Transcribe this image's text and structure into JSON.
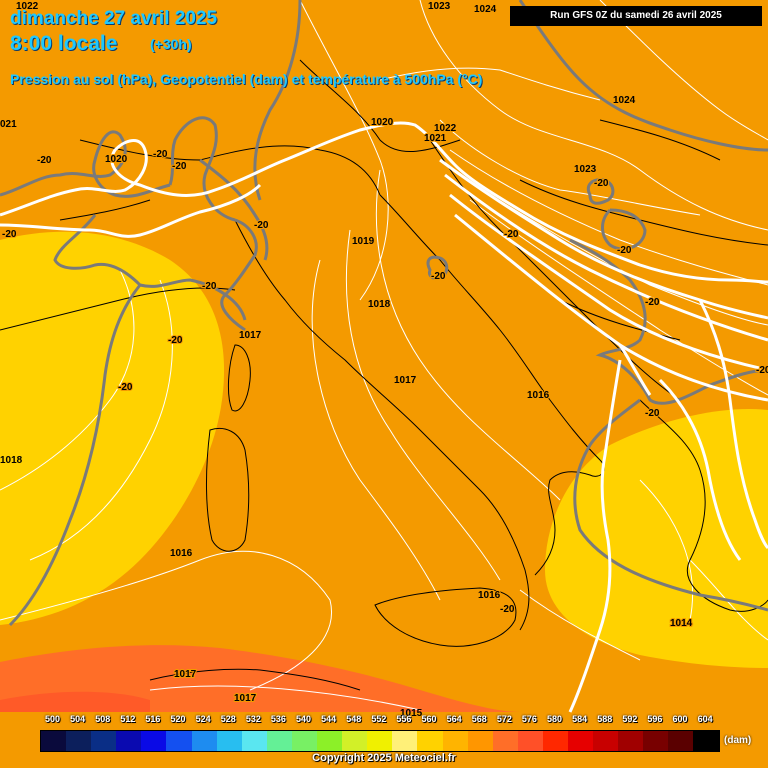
{
  "header": {
    "date_line": "dimanche 27 avril 2025",
    "time_line": "8:00 locale",
    "lead_time": "(+30h)",
    "subtitle": "Pression au sol (hPa), Geopotentiel (dam) et température à 500hPa (°C)",
    "run_info": "Run GFS 0Z du samedi 26 avril 2025"
  },
  "map_labels": {
    "pressure": [
      "1023",
      "1024",
      "1024",
      "1022",
      "1020",
      "1020",
      "1022",
      "1021",
      "1023",
      "1019",
      "1018",
      "1017",
      "1017",
      "1016",
      "1016",
      "1016",
      "1014",
      "1017",
      "1017",
      "1015",
      "1018",
      "021"
    ],
    "temperature": [
      "-20",
      "-20",
      "-20",
      "-20",
      "-20",
      "-20",
      "-20",
      "-20",
      "-20",
      "-20",
      "-20",
      "-20",
      "-20",
      "-20",
      "-20",
      "-20"
    ]
  },
  "legend": {
    "unit": "(dam)",
    "ticks": [
      "500",
      "504",
      "508",
      "512",
      "516",
      "520",
      "524",
      "528",
      "532",
      "536",
      "540",
      "544",
      "548",
      "552",
      "556",
      "560",
      "564",
      "568",
      "572",
      "576",
      "580",
      "584",
      "588",
      "592",
      "596",
      "600",
      "604"
    ],
    "colors": [
      "#0a0a3c",
      "#0c1f5c",
      "#0a2e86",
      "#0a0ab0",
      "#0a0ae6",
      "#1450f0",
      "#1e8cf0",
      "#28bef0",
      "#5ae6f0",
      "#64f096",
      "#78f064",
      "#8cf028",
      "#d2f028",
      "#f0f000",
      "#fff078",
      "#ffd200",
      "#ffb400",
      "#ff9600",
      "#ff6e28",
      "#ff5028",
      "#ff2800",
      "#e60000",
      "#c80000",
      "#a00000",
      "#780000",
      "#5a0000",
      "#000000"
    ],
    "copyright": "Copyright 2025 Meteociel.fr"
  },
  "style": {
    "background": "#f49a00",
    "yellow": "#ffd200",
    "deep_orange": "#ff6e28",
    "title_color": "#1ec8ff"
  }
}
